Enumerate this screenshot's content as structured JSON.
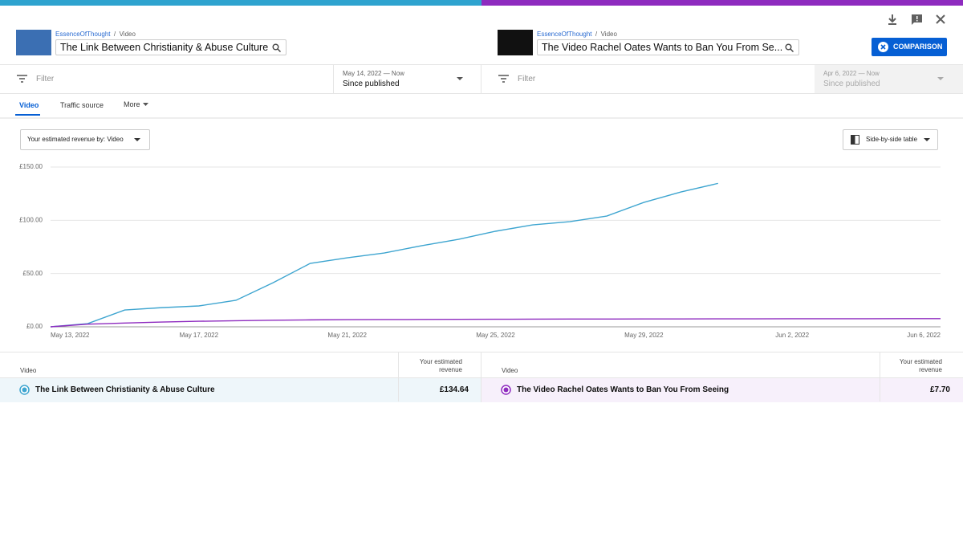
{
  "left": {
    "channel": "EssenceOfThought",
    "crumb": "Video",
    "title": "The Link Between Christianity & Abuse Culture",
    "filter": "Filter",
    "range": "May 14, 2022 — Now",
    "period": "Since published"
  },
  "right": {
    "channel": "EssenceOfThought",
    "crumb": "Video",
    "title": "The Video Rachel Oates Wants to Ban You From Se...",
    "filter": "Filter",
    "range": "Apr 6, 2022 — Now",
    "period": "Since published"
  },
  "button": "COMPARISON",
  "tabs": [
    "Video",
    "Traffic source",
    "More"
  ],
  "metric_select": "Your estimated revenue by: Video",
  "view_select": "Side-by-side table",
  "table": {
    "columns": [
      "Video",
      "Your estimated revenue"
    ],
    "rows": [
      {
        "video": "The Link Between Christianity & Abuse Culture",
        "revenue": "£134.64"
      },
      {
        "video": "The Video Rachel Oates Wants to Ban You From Seeing",
        "revenue": "£7.70"
      }
    ]
  },
  "chart_data": {
    "type": "line",
    "x": [
      "May 13, 2022",
      "May 14, 2022",
      "May 15, 2022",
      "May 16, 2022",
      "May 17, 2022",
      "May 18, 2022",
      "May 19, 2022",
      "May 20, 2022",
      "May 21, 2022",
      "May 22, 2022",
      "May 23, 2022",
      "May 24, 2022",
      "May 25, 2022",
      "May 26, 2022",
      "May 27, 2022",
      "May 28, 2022",
      "May 29, 2022",
      "May 30, 2022",
      "May 31, 2022",
      "Jun 1, 2022",
      "Jun 2, 2022",
      "Jun 3, 2022",
      "Jun 4, 2022",
      "Jun 5, 2022",
      "Jun 6, 2022"
    ],
    "xticks": [
      "May 13, 2022",
      "May 17, 2022",
      "May 21, 2022",
      "May 25, 2022",
      "May 29, 2022",
      "Jun 2, 2022",
      "Jun 6, 2022"
    ],
    "ylim": [
      0,
      150
    ],
    "yticks": [
      {
        "value": 0,
        "label": "£0.00"
      },
      {
        "value": 50,
        "label": "£50.00"
      },
      {
        "value": 100,
        "label": "£100.00"
      },
      {
        "value": 150,
        "label": "£150.00"
      }
    ],
    "grid": true,
    "series": [
      {
        "name": "The Link Between Christianity & Abuse Culture",
        "color": "#3ea5d0",
        "values": [
          0,
          3,
          15.8,
          18,
          19.6,
          24.9,
          41.4,
          59.5,
          64.8,
          69.3,
          76.1,
          82.1,
          89.7,
          95.7,
          98.7,
          104,
          116.8,
          126.6,
          134.64,
          null,
          null,
          null,
          null,
          null,
          null
        ]
      },
      {
        "name": "The Video Rachel Oates Wants to Ban You From Seeing",
        "color": "#8e2bbf",
        "values": [
          0,
          2.5,
          3.5,
          4.5,
          5.2,
          5.7,
          6.2,
          6.5,
          6.7,
          6.8,
          6.9,
          7.0,
          7.1,
          7.2,
          7.3,
          7.3,
          7.4,
          7.4,
          7.5,
          7.5,
          7.6,
          7.6,
          7.6,
          7.7,
          7.7
        ]
      }
    ]
  }
}
